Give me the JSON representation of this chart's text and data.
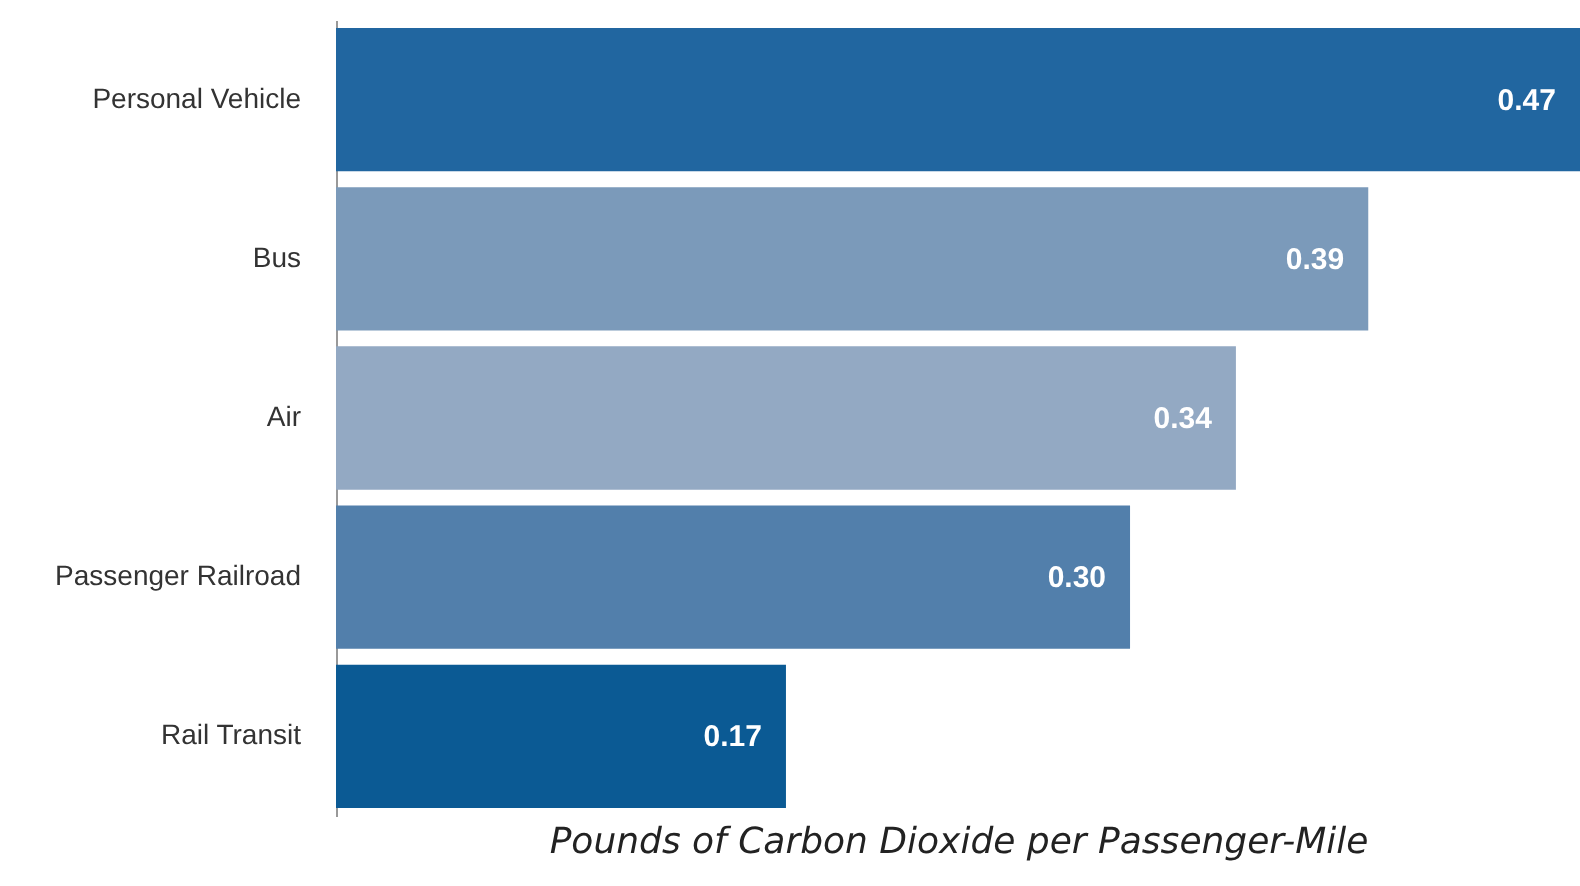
{
  "chart_data": {
    "type": "bar",
    "orientation": "horizontal",
    "xlabel": "Pounds of Carbon Dioxide per Passenger-Mile",
    "categories": [
      "Personal Vehicle",
      "Bus",
      "Air",
      "Passenger Railroad",
      "Rail Transit"
    ],
    "values": [
      0.47,
      0.39,
      0.34,
      0.3,
      0.17
    ],
    "colors": [
      "#2166a0",
      "#7b9aba",
      "#93a9c3",
      "#527fab",
      "#0b5a94"
    ],
    "value_labels": [
      "0.47",
      "0.39",
      "0.34",
      "0.30",
      "0.17"
    ],
    "xlim": [
      0,
      0.47
    ],
    "tick_labels": "y"
  }
}
